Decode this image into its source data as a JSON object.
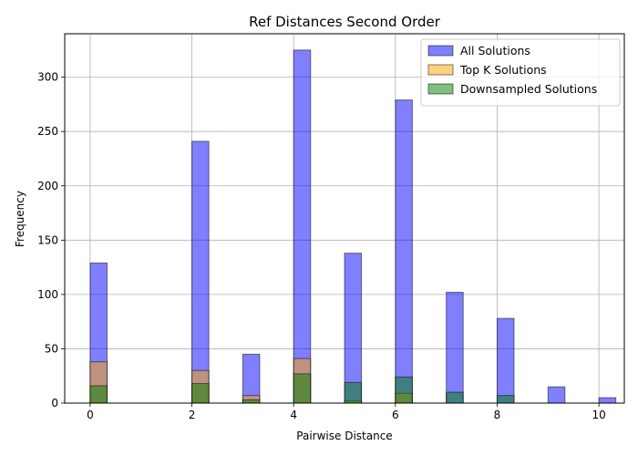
{
  "chart_data": {
    "type": "bar",
    "title": "Ref Distances Second Order",
    "xlabel": "Pairwise Distance",
    "ylabel": "Frequency",
    "xlim": [
      -0.5,
      10.5
    ],
    "ylim": [
      0,
      340
    ],
    "xticks": [
      0,
      2,
      4,
      6,
      8,
      10
    ],
    "yticks": [
      0,
      50,
      100,
      150,
      200,
      250,
      300
    ],
    "grid": true,
    "legend_position": "top-right",
    "bin_width": 0.333,
    "series": [
      {
        "name": "All Solutions",
        "color": "#0000ff",
        "alpha": 0.5,
        "x": [
          0,
          2,
          3,
          4,
          5,
          6,
          7,
          8,
          9,
          10
        ],
        "values": [
          129,
          241,
          45,
          325,
          138,
          279,
          102,
          78,
          15,
          5
        ]
      },
      {
        "name": "Top K Solutions",
        "color": "#ffa500",
        "alpha": 0.5,
        "x": [
          0,
          2,
          3,
          4,
          5,
          6
        ],
        "values": [
          38,
          30,
          7,
          41,
          2,
          9
        ]
      },
      {
        "name": "Downsampled Solutions",
        "color": "#008000",
        "alpha": 0.5,
        "x": [
          0,
          2,
          3,
          4,
          5,
          6,
          7,
          8
        ],
        "values": [
          16,
          18,
          3,
          27,
          19,
          24,
          10,
          7
        ]
      }
    ]
  }
}
